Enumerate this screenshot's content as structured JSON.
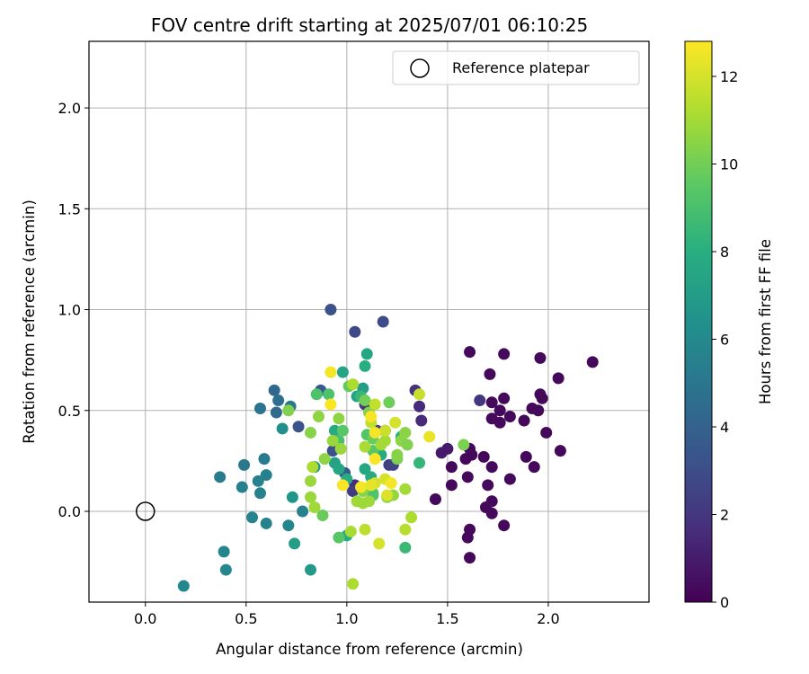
{
  "chart_data": {
    "type": "scatter",
    "title": "FOV centre drift starting at 2025/07/01 06:10:25",
    "xlabel": "Angular distance from reference (arcmin)",
    "ylabel": "Rotation from reference (arcmin)",
    "xlim": [
      -0.28,
      2.5
    ],
    "ylim": [
      -0.45,
      2.33
    ],
    "xticks": [
      "0.0",
      "0.5",
      "1.0",
      "1.5",
      "2.0"
    ],
    "xtick_values": [
      0.0,
      0.5,
      1.0,
      1.5,
      2.0
    ],
    "yticks": [
      "0.0",
      "0.5",
      "1.0",
      "1.5",
      "2.0"
    ],
    "ytick_values": [
      0.0,
      0.5,
      1.0,
      1.5,
      2.0
    ],
    "grid": true,
    "legend": {
      "label": "Reference platepar",
      "placement": "top-right",
      "marker": "hollow-circle",
      "point": [
        0.0,
        0.0
      ]
    },
    "colorbar": {
      "label": "Hours from first FF file",
      "colormap": "viridis",
      "range": [
        0,
        12.8
      ],
      "ticks": [
        "0",
        "2",
        "4",
        "6",
        "8",
        "10",
        "12"
      ],
      "tick_values": [
        0,
        2,
        4,
        6,
        8,
        10,
        12
      ]
    },
    "points": [
      [
        2.22,
        0.74,
        0.3
      ],
      [
        1.61,
        0.79,
        0.3
      ],
      [
        1.78,
        0.78,
        0.3
      ],
      [
        1.96,
        0.76,
        0.3
      ],
      [
        1.71,
        0.68,
        0.3
      ],
      [
        2.05,
        0.66,
        0.3
      ],
      [
        1.96,
        0.58,
        0.3
      ],
      [
        1.97,
        0.56,
        0.3
      ],
      [
        1.78,
        0.56,
        0.3
      ],
      [
        1.72,
        0.54,
        0.3
      ],
      [
        1.92,
        0.51,
        0.3
      ],
      [
        1.95,
        0.5,
        0.3
      ],
      [
        1.76,
        0.5,
        0.3
      ],
      [
        1.81,
        0.47,
        0.3
      ],
      [
        1.72,
        0.46,
        0.3
      ],
      [
        1.76,
        0.44,
        0.3
      ],
      [
        1.88,
        0.45,
        0.3
      ],
      [
        1.99,
        0.39,
        0.3
      ],
      [
        2.06,
        0.3,
        0.3
      ],
      [
        1.61,
        0.31,
        0.3
      ],
      [
        1.62,
        0.28,
        0.3
      ],
      [
        1.68,
        0.27,
        0.3
      ],
      [
        1.89,
        0.27,
        0.3
      ],
      [
        1.59,
        0.26,
        0.3
      ],
      [
        1.72,
        0.22,
        0.3
      ],
      [
        1.93,
        0.22,
        0.3
      ],
      [
        1.52,
        0.22,
        0.3
      ],
      [
        1.6,
        0.17,
        0.3
      ],
      [
        1.81,
        0.16,
        0.3
      ],
      [
        1.52,
        0.13,
        0.3
      ],
      [
        1.7,
        0.13,
        0.3
      ],
      [
        1.44,
        0.06,
        0.3
      ],
      [
        1.72,
        0.05,
        0.3
      ],
      [
        1.69,
        0.02,
        0.3
      ],
      [
        1.72,
        -0.01,
        0.3
      ],
      [
        1.78,
        -0.07,
        0.3
      ],
      [
        1.61,
        -0.09,
        0.3
      ],
      [
        1.6,
        -0.13,
        0.3
      ],
      [
        1.61,
        -0.23,
        0.3
      ],
      [
        1.5,
        0.31,
        0.9
      ],
      [
        1.47,
        0.29,
        0.9
      ],
      [
        1.36,
        0.52,
        1.5
      ],
      [
        1.37,
        0.45,
        1.5
      ],
      [
        1.34,
        0.6,
        1.8
      ],
      [
        1.66,
        0.55,
        2.0
      ],
      [
        1.09,
        0.53,
        2.0
      ],
      [
        1.04,
        0.13,
        1.7
      ],
      [
        1.15,
        0.4,
        2.2
      ],
      [
        1.19,
        0.4,
        2.3
      ],
      [
        1.03,
        0.1,
        2.2
      ],
      [
        1.21,
        0.23,
        2.4
      ],
      [
        1.23,
        0.23,
        2.6
      ],
      [
        1.04,
        0.89,
        2.8
      ],
      [
        1.18,
        0.94,
        2.9
      ],
      [
        0.92,
        1.0,
        3.2
      ],
      [
        0.93,
        0.3,
        3.2
      ],
      [
        0.76,
        0.42,
        3.3
      ],
      [
        0.87,
        0.6,
        3.6
      ],
      [
        0.99,
        0.19,
        3.6
      ],
      [
        0.64,
        0.6,
        4.3
      ],
      [
        0.65,
        0.49,
        4.4
      ],
      [
        0.66,
        0.55,
        4.6
      ],
      [
        0.57,
        0.51,
        4.9
      ],
      [
        0.72,
        0.52,
        5.1
      ],
      [
        0.49,
        0.23,
        5.1
      ],
      [
        0.59,
        0.26,
        5.2
      ],
      [
        0.37,
        0.17,
        5.3
      ],
      [
        0.48,
        0.12,
        5.5
      ],
      [
        0.6,
        0.18,
        5.5
      ],
      [
        0.56,
        0.15,
        5.6
      ],
      [
        0.57,
        0.09,
        5.6
      ],
      [
        0.78,
        0.0,
        5.6
      ],
      [
        0.53,
        -0.03,
        5.7
      ],
      [
        0.6,
        -0.06,
        5.7
      ],
      [
        0.71,
        -0.07,
        5.8
      ],
      [
        0.39,
        -0.2,
        5.8
      ],
      [
        0.4,
        -0.29,
        5.9
      ],
      [
        0.19,
        -0.37,
        5.9
      ],
      [
        0.68,
        0.41,
        6.3
      ],
      [
        0.84,
        0.22,
        6.5
      ],
      [
        0.73,
        0.07,
        6.6
      ],
      [
        0.74,
        -0.16,
        7.1
      ],
      [
        0.82,
        -0.29,
        6.9
      ],
      [
        1.08,
        0.61,
        7.0
      ],
      [
        1.05,
        0.57,
        7.4
      ],
      [
        0.98,
        0.69,
        7.4
      ],
      [
        1.1,
        0.78,
        7.6
      ],
      [
        1.09,
        0.72,
        8.0
      ],
      [
        0.94,
        0.24,
        7.3
      ],
      [
        0.96,
        0.21,
        7.5
      ],
      [
        1.09,
        0.21,
        7.6
      ],
      [
        1.17,
        0.28,
        7.8
      ],
      [
        1.12,
        0.17,
        7.8
      ],
      [
        1.0,
        0.16,
        7.9
      ],
      [
        0.94,
        0.4,
        7.8
      ],
      [
        1.0,
        -0.12,
        7.9
      ],
      [
        1.07,
        0.57,
        8.5
      ],
      [
        1.27,
        0.37,
        8.2
      ],
      [
        1.36,
        0.24,
        8.4
      ],
      [
        1.29,
        -0.18,
        8.6
      ],
      [
        0.85,
        0.58,
        9.1
      ],
      [
        0.91,
        0.58,
        9.1
      ],
      [
        0.96,
        0.35,
        9.0
      ],
      [
        0.98,
        0.4,
        9.4
      ],
      [
        1.1,
        0.38,
        9.3
      ],
      [
        1.13,
        0.3,
        9.4
      ],
      [
        1.13,
        0.09,
        9.6
      ],
      [
        1.13,
        0.08,
        9.2
      ],
      [
        0.96,
        -0.13,
        9.4
      ],
      [
        0.88,
        -0.02,
        9.8
      ],
      [
        1.01,
        0.62,
        9.7
      ],
      [
        1.09,
        0.55,
        10.0
      ],
      [
        1.21,
        0.54,
        9.9
      ],
      [
        1.11,
        0.49,
        10.3
      ],
      [
        1.13,
        0.36,
        9.8
      ],
      [
        0.71,
        0.5,
        10.3
      ],
      [
        0.82,
        0.39,
        10.4
      ],
      [
        0.86,
        0.47,
        10.6
      ],
      [
        0.96,
        0.46,
        10.6
      ],
      [
        1.25,
        0.26,
        10.2
      ],
      [
        1.25,
        0.28,
        10.4
      ],
      [
        1.08,
        0.1,
        10.4
      ],
      [
        1.2,
        0.07,
        10.5
      ],
      [
        1.27,
        0.35,
        10.5
      ],
      [
        1.29,
        0.39,
        10.5
      ],
      [
        1.3,
        0.33,
        10.3
      ],
      [
        1.58,
        0.33,
        10.2
      ],
      [
        0.89,
        0.26,
        10.6
      ],
      [
        0.93,
        0.35,
        10.8
      ],
      [
        0.97,
        0.31,
        10.8
      ],
      [
        0.82,
        0.15,
        10.8
      ],
      [
        0.82,
        0.07,
        10.8
      ],
      [
        0.84,
        0.02,
        10.9
      ],
      [
        1.05,
        0.05,
        10.9
      ],
      [
        1.08,
        0.04,
        10.9
      ],
      [
        1.11,
        0.05,
        10.9
      ],
      [
        1.23,
        0.08,
        10.7
      ],
      [
        1.09,
        0.32,
        11.1
      ],
      [
        1.19,
        0.35,
        11.0
      ],
      [
        1.17,
        0.33,
        11.0
      ],
      [
        1.03,
        0.63,
        11.2
      ],
      [
        1.29,
        0.11,
        11.0
      ],
      [
        1.32,
        -0.03,
        11.2
      ],
      [
        1.29,
        -0.09,
        11.4
      ],
      [
        1.02,
        -0.1,
        11.1
      ],
      [
        1.03,
        -0.36,
        11.2
      ],
      [
        0.83,
        0.22,
        11.2
      ],
      [
        1.09,
        -0.09,
        11.5
      ],
      [
        1.12,
        0.44,
        11.6
      ],
      [
        1.14,
        0.53,
        11.6
      ],
      [
        1.19,
        0.4,
        11.8
      ],
      [
        1.36,
        0.58,
        11.7
      ],
      [
        1.24,
        0.44,
        12.0
      ],
      [
        1.12,
        0.13,
        12.0
      ],
      [
        1.14,
        0.14,
        12.0
      ],
      [
        1.19,
        0.16,
        12.0
      ],
      [
        1.2,
        0.08,
        12.1
      ],
      [
        1.16,
        -0.16,
        12.0
      ],
      [
        1.41,
        0.37,
        12.4
      ],
      [
        0.92,
        0.69,
        12.6
      ],
      [
        0.92,
        0.53,
        12.7
      ],
      [
        1.12,
        0.47,
        12.7
      ],
      [
        1.14,
        0.39,
        12.6
      ],
      [
        1.14,
        0.26,
        12.7
      ],
      [
        1.22,
        0.14,
        12.6
      ],
      [
        1.07,
        0.12,
        12.6
      ],
      [
        0.98,
        0.13,
        12.7
      ],
      [
        1.12,
        0.13,
        12.3
      ]
    ]
  }
}
